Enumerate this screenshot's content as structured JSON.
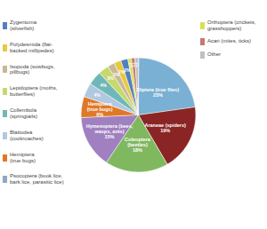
{
  "chart_data": {
    "type": "pie",
    "categories": [
      "Diptera (true flies)\n23%",
      "Araneae (spiders)\n19%",
      "Coleoptera\n(beetles)\n18%",
      "Hymenoptera (bees,\nwasps, ants)\n15%",
      "Hemiptera\n(true bugs)\n6%",
      null,
      null,
      null,
      null,
      null,
      null,
      null,
      null,
      null
    ],
    "values": [
      23,
      19,
      18,
      15,
      6,
      4,
      4,
      3,
      2,
      2,
      2,
      1,
      1,
      1
    ],
    "value_labels": [
      null,
      null,
      null,
      null,
      null,
      "4%",
      "4%",
      "3%",
      "2%",
      "2%",
      "2%",
      "1%",
      "1%",
      "1%"
    ],
    "data_labels": true,
    "colors": [
      "#7ab0d4",
      "#8b2525",
      "#80b860",
      "#a080c0",
      "#e07828",
      "#b0c8e0",
      "#70b8b8",
      "#c8d870",
      "#c8b898",
      "#e8c840",
      "#5080c0",
      "#d8e050",
      "#c87870",
      "#c0c0c0"
    ],
    "left_legend": [
      {
        "text": "Zygentoma\n(silverfish)",
        "color": "#5080c0"
      },
      {
        "text": "Polydesmida (flat-\nbacked millipedes)",
        "color": "#e8c840"
      },
      {
        "text": "Isopoda (sowbugs,\npillbugs)",
        "color": "#c8b898"
      },
      {
        "text": "Lepidoptera (moths,\nbutterflies)",
        "color": "#c8d870"
      },
      {
        "text": "Collembola\n(springtails)",
        "color": "#70b8b8"
      },
      {
        "text": "Blattodea\n(cockroaches)",
        "color": "#b0c8e0"
      },
      {
        "text": "Hemiptera\n(true bugs)",
        "color": "#e07828"
      },
      {
        "text": "Psocoptera (book lice,\nbark lice, parasitic lice)",
        "color": "#90a8c0"
      }
    ],
    "right_legend": [
      {
        "text": "Orthoptera (crickets,\ngrasshoppers)",
        "color": "#d8e050"
      },
      {
        "text": "Acari (mites, ticks)",
        "color": "#c87870"
      },
      {
        "text": "Other",
        "color": "#c0c0c0"
      }
    ]
  }
}
